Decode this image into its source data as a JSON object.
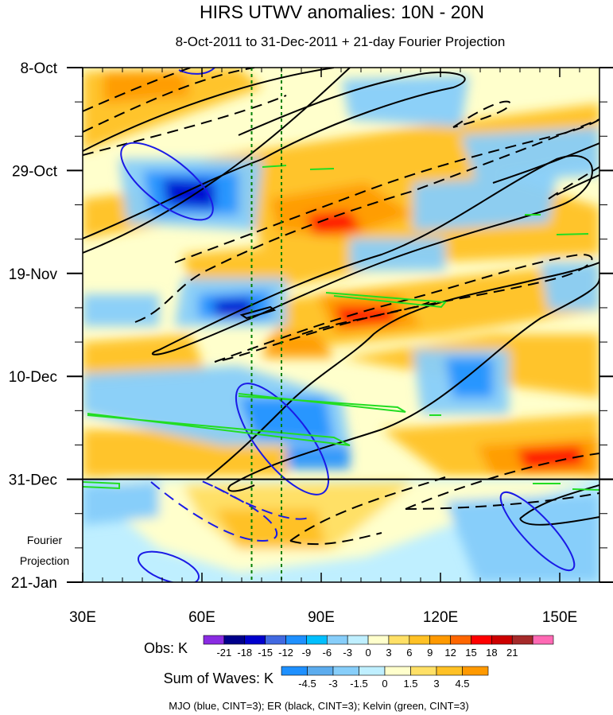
{
  "chart_data": {
    "type": "heatmap",
    "title": "HIRS UTWV anomalies: 10N - 20N",
    "subtitle": "8-Oct-2011 to 31-Dec-2011 + 21-day Fourier Projection",
    "x_ticks": [
      {
        "value": 30,
        "label": "30E"
      },
      {
        "value": 60,
        "label": "60E"
      },
      {
        "value": 90,
        "label": "90E"
      },
      {
        "value": 120,
        "label": "120E"
      },
      {
        "value": 150,
        "label": "150E"
      }
    ],
    "xlim": [
      30,
      160
    ],
    "y_ticks": [
      {
        "day": 0,
        "label": "8-Oct"
      },
      {
        "day": 21,
        "label": "29-Oct"
      },
      {
        "day": 42,
        "label": "19-Nov"
      },
      {
        "day": 63,
        "label": "10-Dec"
      },
      {
        "day": 84,
        "label": "31-Dec"
      },
      {
        "day": 105,
        "label": "21-Jan"
      }
    ],
    "ylim": [
      0,
      105
    ],
    "projection_start_day": 84,
    "projection_label_line1": "Fourier",
    "projection_label_line2": "Projection",
    "reference_lines_lon": [
      72.5,
      80
    ],
    "obs_colorbar": {
      "title": "Obs: K",
      "levels": [
        "-21",
        "-18",
        "-15",
        "-12",
        "-9",
        "-6",
        "-3",
        "0",
        "3",
        "6",
        "9",
        "12",
        "15",
        "18",
        "21"
      ],
      "colors": [
        "#8a2be2",
        "#00008b",
        "#0000cd",
        "#4169e1",
        "#1e90ff",
        "#00bfff",
        "#87cefa",
        "#bfefff",
        "#ffffcc",
        "#ffe066",
        "#ffc125",
        "#ff9900",
        "#ff6600",
        "#ff0000",
        "#cd0000",
        "#a52a2a",
        "#ff69b4"
      ]
    },
    "waves_colorbar": {
      "title": "Sum of Waves: K",
      "levels": [
        "-4.5",
        "-3",
        "-1.5",
        "0",
        "1.5",
        "3",
        "4.5"
      ],
      "colors": [
        "#1e90ff",
        "#5cacee",
        "#87cefa",
        "#bfefff",
        "#ffffcc",
        "#ffe066",
        "#ffc125",
        "#ff9900"
      ]
    },
    "footnote": "MJO (blue, CINT=3); ER (black, CINT=3); Kelvin (green, CINT=3)",
    "contour_colors": {
      "mjo": "#1a1ae6",
      "er": "#000000",
      "kelvin": "#22dd22",
      "ref": "#008000"
    }
  }
}
